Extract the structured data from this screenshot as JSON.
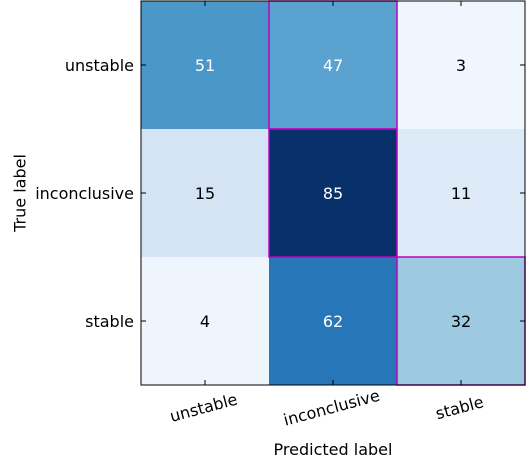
{
  "chart_data": {
    "type": "heatmap",
    "title": "",
    "xlabel": "Predicted label",
    "ylabel": "True label",
    "x_categories": [
      "unstable",
      "inconclusive",
      "stable"
    ],
    "y_categories": [
      "unstable",
      "inconclusive",
      "stable"
    ],
    "values": [
      [
        51,
        47,
        3
      ],
      [
        15,
        85,
        11
      ],
      [
        4,
        62,
        32
      ]
    ],
    "color_range": [
      0,
      85
    ],
    "colormap": "Blues",
    "highlight_color": "#bf00bf",
    "highlighted_cells": [
      [
        0,
        1
      ],
      [
        1,
        1
      ],
      [
        2,
        2
      ]
    ],
    "grid": false
  }
}
